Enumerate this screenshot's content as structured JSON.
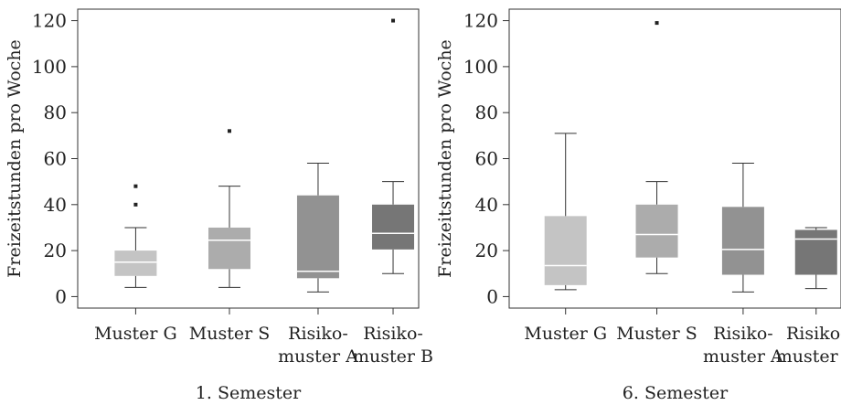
{
  "chart_data": [
    {
      "type": "boxplot",
      "xlabel": "1. Semester",
      "ylabel": "Freizeitstunden pro Woche",
      "ylim": [
        -5,
        125
      ],
      "yticks": [
        0,
        20,
        40,
        60,
        80,
        100,
        120
      ],
      "categories": [
        {
          "lines": [
            "Muster G"
          ],
          "color": "#c4c4c4",
          "median_color": "#ffffff",
          "min": 4,
          "q1": 9,
          "median": 15,
          "q3": 20,
          "max": 30,
          "outliers": [
            40,
            48
          ]
        },
        {
          "lines": [
            "Muster S"
          ],
          "color": "#acacac",
          "median_color": "#ffffff",
          "min": 4,
          "q1": 12,
          "median": 24.5,
          "q3": 30,
          "max": 48,
          "outliers": [
            72
          ]
        },
        {
          "lines": [
            "Risiko-",
            "muster A"
          ],
          "color": "#929292",
          "median_color": "#ffffff",
          "min": 2,
          "q1": 8,
          "median": 11,
          "q3": 44,
          "max": 58,
          "outliers": []
        },
        {
          "lines": [
            "Risiko-",
            "muster B"
          ],
          "color": "#767676",
          "median_color": "#ffffff",
          "min": 10,
          "q1": 20.5,
          "median": 27.5,
          "q3": 40,
          "max": 50,
          "outliers": [
            120
          ]
        }
      ]
    },
    {
      "type": "boxplot",
      "xlabel": "6. Semester",
      "ylabel": "Freizeitstunden pro Woche",
      "ylim": [
        -5,
        125
      ],
      "yticks": [
        0,
        20,
        40,
        60,
        80,
        100,
        120
      ],
      "categories": [
        {
          "lines": [
            "Muster G"
          ],
          "color": "#c4c4c4",
          "median_color": "#ffffff",
          "min": 3,
          "q1": 5,
          "median": 13.5,
          "q3": 35,
          "max": 71,
          "outliers": []
        },
        {
          "lines": [
            "Muster S"
          ],
          "color": "#acacac",
          "median_color": "#ffffff",
          "min": 10,
          "q1": 17,
          "median": 27,
          "q3": 40,
          "max": 50,
          "outliers": [
            119
          ]
        },
        {
          "lines": [
            "Risiko-",
            "muster A"
          ],
          "color": "#929292",
          "median_color": "#ffffff",
          "min": 2,
          "q1": 9.5,
          "median": 20.5,
          "q3": 39,
          "max": 58,
          "outliers": []
        },
        {
          "lines": [
            "Risiko-",
            "muster B"
          ],
          "color": "#767676",
          "median_color": "#ffffff",
          "min": 3.5,
          "q1": 9.5,
          "median": 25,
          "q3": 29,
          "max": 30,
          "outliers": []
        }
      ]
    }
  ]
}
